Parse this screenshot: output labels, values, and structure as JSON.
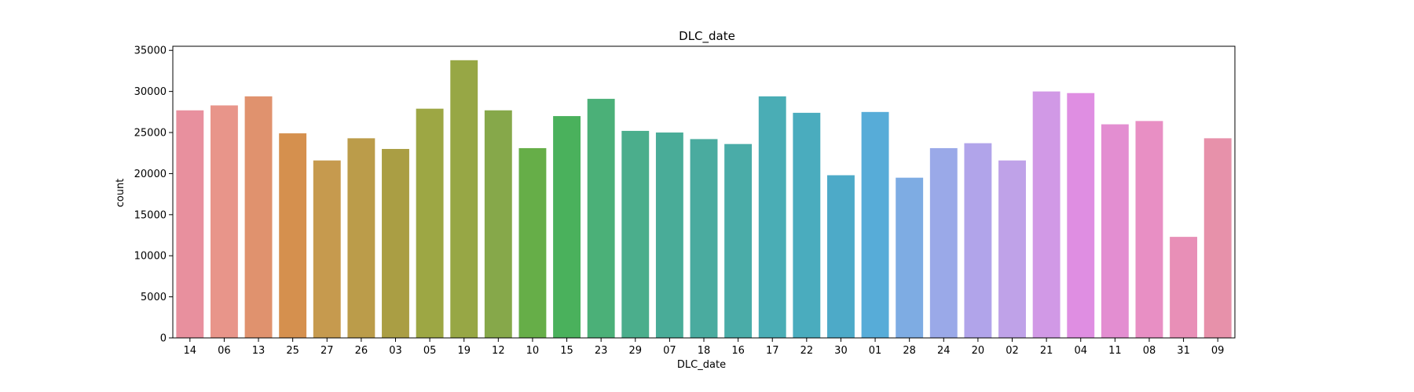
{
  "chart_data": {
    "type": "bar",
    "title": "DLC_date",
    "xlabel": "DLC_date",
    "ylabel": "count",
    "ylim": [
      0,
      35500
    ],
    "yticks": [
      0,
      5000,
      10000,
      15000,
      20000,
      25000,
      30000,
      35000
    ],
    "ytick_labels": [
      "0",
      "5000",
      "10000",
      "15000",
      "20000",
      "25000",
      "30000",
      "35000"
    ],
    "grid": false,
    "legend": "none",
    "categories": [
      "14",
      "06",
      "13",
      "25",
      "27",
      "26",
      "03",
      "05",
      "19",
      "12",
      "10",
      "15",
      "23",
      "29",
      "07",
      "18",
      "16",
      "17",
      "22",
      "30",
      "01",
      "28",
      "24",
      "20",
      "02",
      "21",
      "04",
      "11",
      "08",
      "31",
      "09"
    ],
    "values": [
      27700,
      28300,
      29400,
      24900,
      21600,
      24300,
      23000,
      27900,
      33800,
      27700,
      23100,
      27000,
      29100,
      25200,
      25000,
      24200,
      23600,
      29400,
      27400,
      19800,
      27500,
      19500,
      23100,
      23700,
      21600,
      30000,
      29800,
      26000,
      26400,
      12300,
      24300
    ],
    "colors": [
      "#e8909e",
      "#e8958a",
      "#e0926e",
      "#d5904e",
      "#c69a4e",
      "#bb9c4a",
      "#aa9e44",
      "#9da744",
      "#97a745",
      "#86a84a",
      "#66ae48",
      "#4ab15c",
      "#4bb078",
      "#4bae8c",
      "#49ac98",
      "#4aab9f",
      "#4aaca8",
      "#4aadb5",
      "#4aacbe",
      "#4daac8",
      "#57acd8",
      "#7eace3",
      "#9aa9e8",
      "#b1a4ea",
      "#bfa2e8",
      "#d199e6",
      "#df8ee2",
      "#e38ed1",
      "#e88fc4",
      "#e88fb7",
      "#e791aa"
    ]
  }
}
